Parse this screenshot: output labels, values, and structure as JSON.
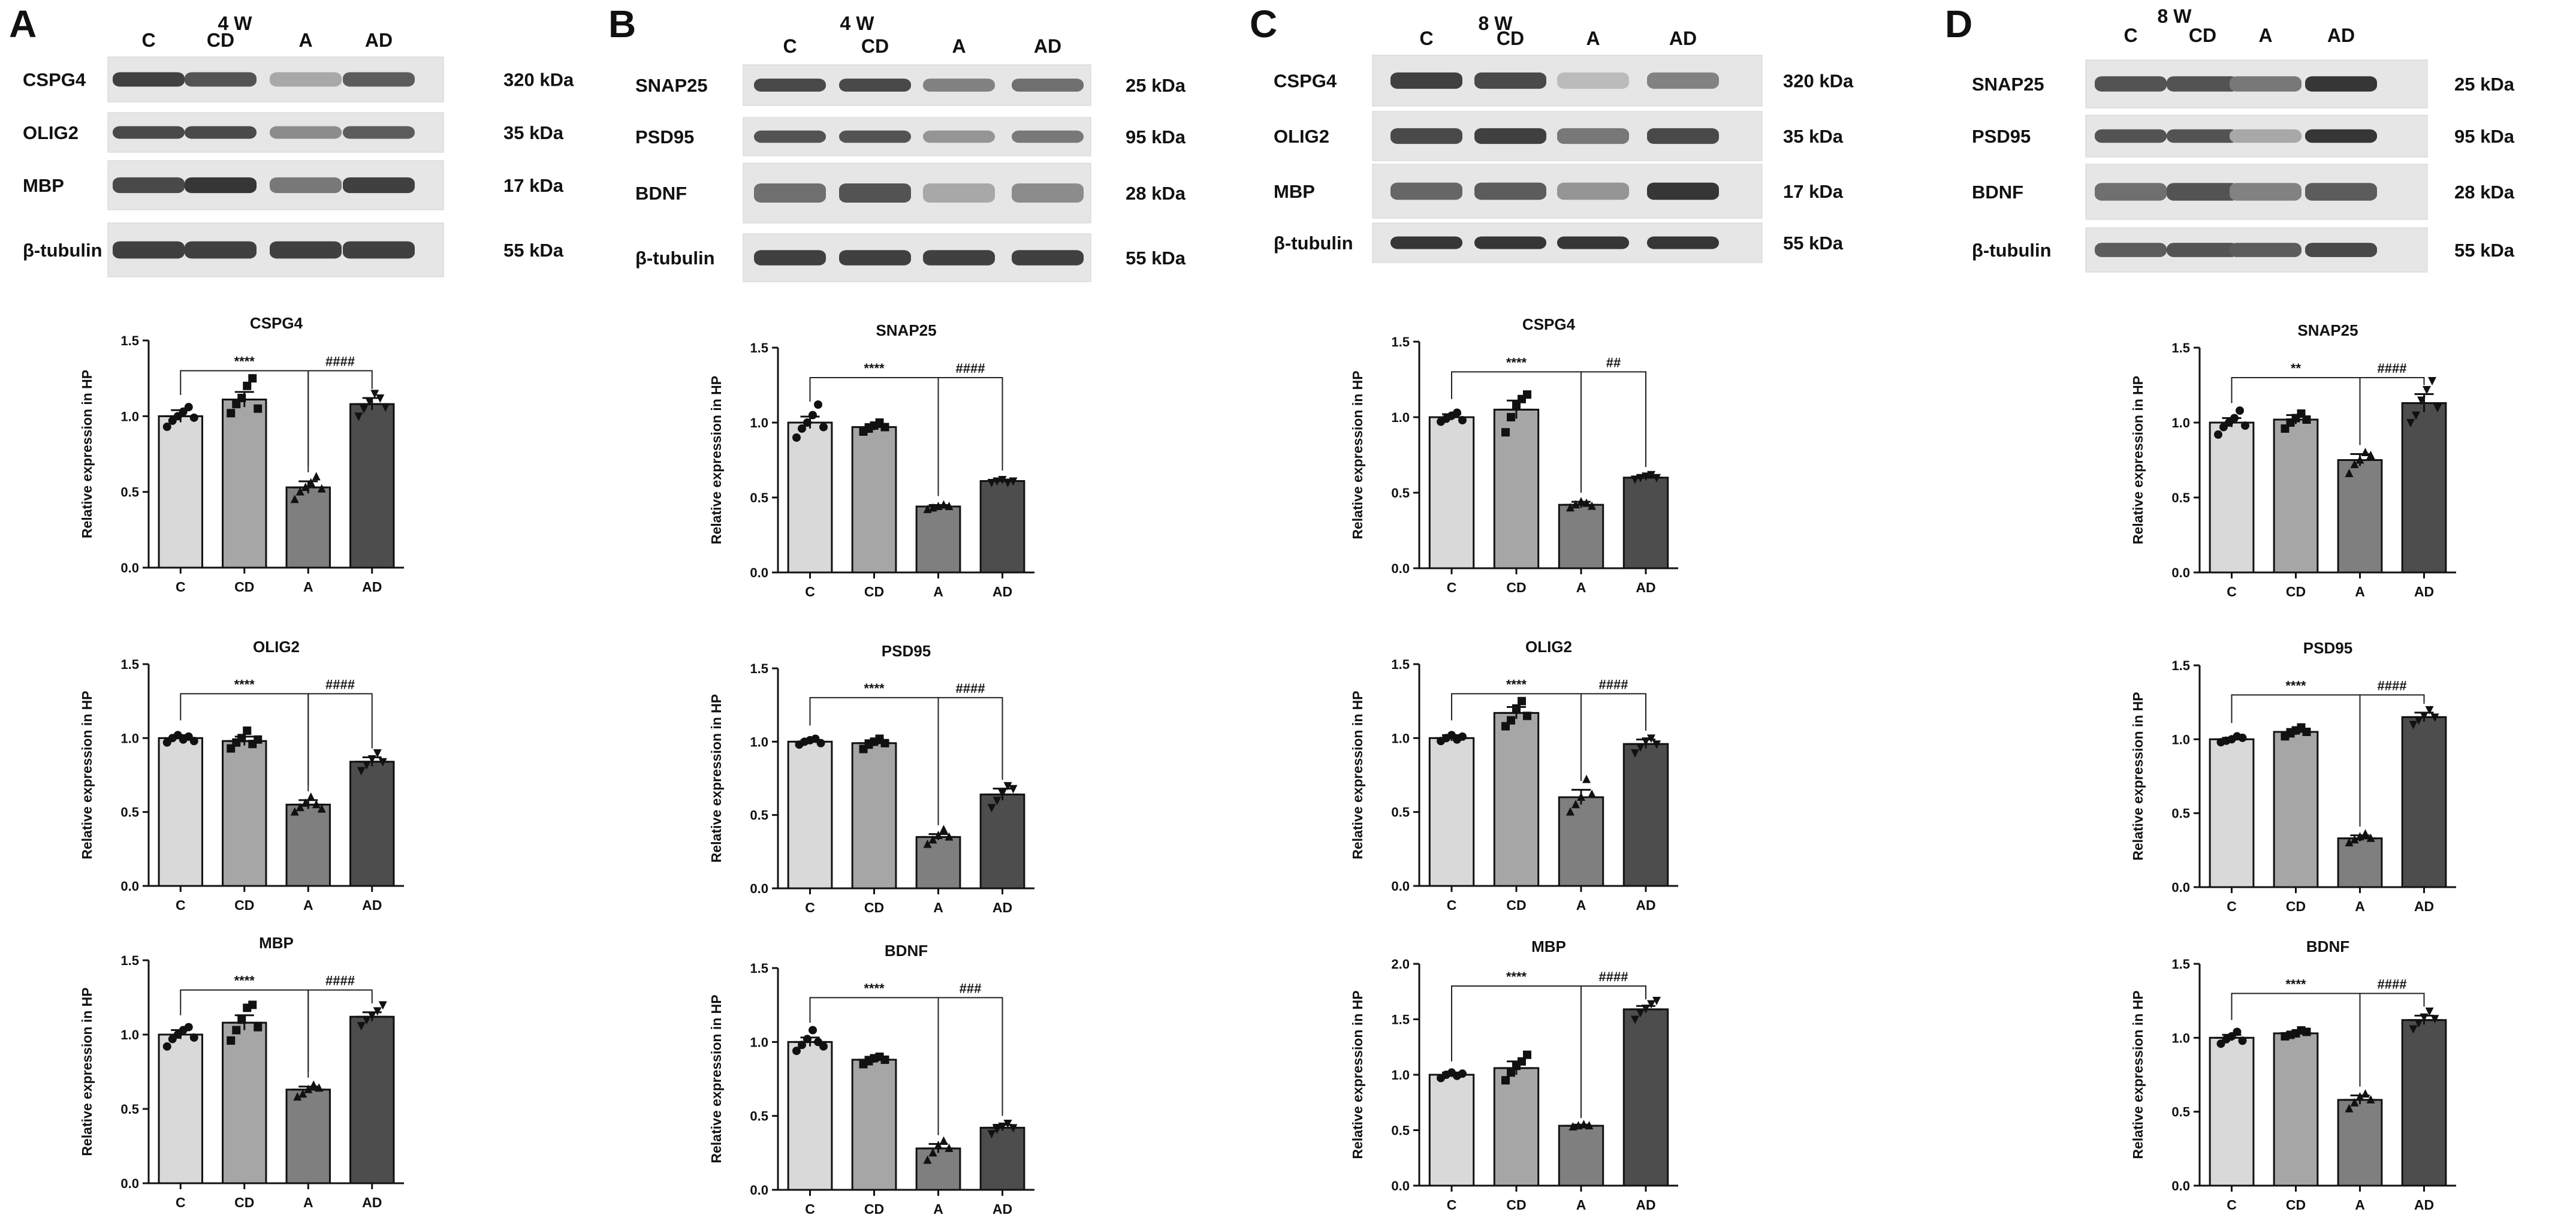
{
  "panels": [
    {
      "letter": "A",
      "timepoint": "4 W",
      "lanes": [
        "C",
        "CD",
        "A",
        "AD"
      ],
      "blots": [
        {
          "protein": "CSPG4",
          "kda": "320 kDa",
          "intensity": [
            0.85,
            0.75,
            0.3,
            0.7
          ]
        },
        {
          "protein": "OLIG2",
          "kda": "35 kDa",
          "intensity": [
            0.8,
            0.8,
            0.45,
            0.7
          ]
        },
        {
          "protein": "MBP",
          "kda": "17 kDa",
          "intensity": [
            0.8,
            0.9,
            0.55,
            0.85
          ]
        },
        {
          "protein": "β-tubulin",
          "kda": "55 kDa",
          "intensity": [
            0.85,
            0.85,
            0.85,
            0.85
          ]
        }
      ]
    },
    {
      "letter": "B",
      "timepoint": "4 W",
      "lanes": [
        "C",
        "CD",
        "A",
        "AD"
      ],
      "blots": [
        {
          "protein": "SNAP25",
          "kda": "25 kDa",
          "intensity": [
            0.8,
            0.8,
            0.5,
            0.6
          ]
        },
        {
          "protein": "PSD95",
          "kda": "95 kDa",
          "intensity": [
            0.75,
            0.75,
            0.4,
            0.55
          ]
        },
        {
          "protein": "BDNF",
          "kda": "28 kDa",
          "intensity": [
            0.6,
            0.75,
            0.3,
            0.45
          ]
        },
        {
          "protein": "β-tubulin",
          "kda": "55 kDa",
          "intensity": [
            0.85,
            0.85,
            0.85,
            0.85
          ]
        }
      ]
    },
    {
      "letter": "C",
      "timepoint": "8 W",
      "lanes": [
        "C",
        "CD",
        "A",
        "AD"
      ],
      "blots": [
        {
          "protein": "CSPG4",
          "kda": "320 kDa",
          "intensity": [
            0.85,
            0.8,
            0.2,
            0.5
          ]
        },
        {
          "protein": "OLIG2",
          "kda": "35 kDa",
          "intensity": [
            0.8,
            0.85,
            0.55,
            0.8
          ]
        },
        {
          "protein": "MBP",
          "kda": "17 kDa",
          "intensity": [
            0.65,
            0.7,
            0.4,
            0.9
          ]
        },
        {
          "protein": "β-tubulin",
          "kda": "55 kDa",
          "intensity": [
            0.9,
            0.9,
            0.9,
            0.9
          ]
        }
      ]
    },
    {
      "letter": "D",
      "timepoint": "8 W",
      "lanes": [
        "C",
        "CD",
        "A",
        "AD"
      ],
      "blots": [
        {
          "protein": "SNAP25",
          "kda": "25 kDa",
          "intensity": [
            0.75,
            0.75,
            0.55,
            0.9
          ]
        },
        {
          "protein": "PSD95",
          "kda": "95 kDa",
          "intensity": [
            0.75,
            0.75,
            0.3,
            0.9
          ]
        },
        {
          "protein": "BDNF",
          "kda": "28 kDa",
          "intensity": [
            0.6,
            0.75,
            0.5,
            0.7
          ]
        },
        {
          "protein": "β-tubulin",
          "kda": "55 kDa",
          "intensity": [
            0.7,
            0.75,
            0.7,
            0.8
          ]
        }
      ]
    }
  ],
  "colors": {
    "C": "#d9d9d9",
    "CD": "#a6a6a6",
    "A": "#7f7f7f",
    "AD": "#4d4d4d"
  },
  "chart_data": [
    {
      "type": "bar",
      "panel": "A",
      "title": "CSPG4",
      "ylabel": "Relative expression in HP",
      "categories": [
        "C",
        "CD",
        "A",
        "AD"
      ],
      "values": [
        1.0,
        1.11,
        0.53,
        1.08
      ],
      "sem": [
        0.04,
        0.05,
        0.04,
        0.04
      ],
      "ylim": [
        0,
        1.5
      ],
      "yticks": [
        "0.0",
        "0.5",
        "1.0",
        "1.5"
      ],
      "markers": [
        "circle",
        "square",
        "triangle",
        "triangle-down"
      ],
      "points": [
        [
          0.93,
          0.97,
          1.0,
          1.03,
          1.06,
          0.99
        ],
        [
          1.02,
          1.08,
          1.12,
          1.2,
          1.25,
          1.05
        ],
        [
          0.45,
          0.5,
          0.53,
          0.56,
          0.6,
          0.52
        ],
        [
          1.0,
          1.05,
          1.1,
          1.15,
          1.12,
          1.06
        ]
      ],
      "annotations": [
        {
          "text": "****",
          "from": "C",
          "to": "A",
          "y": 1.3
        },
        {
          "text": "####",
          "from": "A",
          "to": "AD",
          "y": 1.3
        }
      ]
    },
    {
      "type": "bar",
      "panel": "A",
      "title": "OLIG2",
      "ylabel": "Relative expression in HP",
      "categories": [
        "C",
        "CD",
        "A",
        "AD"
      ],
      "values": [
        1.0,
        0.98,
        0.55,
        0.84
      ],
      "sem": [
        0.02,
        0.03,
        0.03,
        0.03
      ],
      "ylim": [
        0,
        1.5
      ],
      "yticks": [
        "0.0",
        "0.5",
        "1.0",
        "1.5"
      ],
      "markers": [
        "circle",
        "square",
        "triangle",
        "triangle-down"
      ],
      "points": [
        [
          0.97,
          1.0,
          1.02,
          0.99,
          1.01,
          0.98
        ],
        [
          0.93,
          0.97,
          1.0,
          1.05,
          0.96,
          0.99
        ],
        [
          0.5,
          0.53,
          0.56,
          0.6,
          0.55,
          0.52
        ],
        [
          0.78,
          0.82,
          0.86,
          0.9,
          0.84
        ]
      ],
      "annotations": [
        {
          "text": "****",
          "from": "C",
          "to": "A",
          "y": 1.3
        },
        {
          "text": "####",
          "from": "A",
          "to": "AD",
          "y": 1.3
        }
      ]
    },
    {
      "type": "bar",
      "panel": "A",
      "title": "MBP",
      "ylabel": "Relative expression in HP",
      "categories": [
        "C",
        "CD",
        "A",
        "AD"
      ],
      "values": [
        1.0,
        1.08,
        0.63,
        1.12
      ],
      "sem": [
        0.03,
        0.05,
        0.02,
        0.03
      ],
      "ylim": [
        0,
        1.5
      ],
      "yticks": [
        "0.0",
        "0.5",
        "1.0",
        "1.5"
      ],
      "markers": [
        "circle",
        "square",
        "triangle",
        "triangle-down"
      ],
      "points": [
        [
          0.92,
          0.97,
          1.0,
          1.03,
          1.05,
          0.98
        ],
        [
          0.96,
          1.03,
          1.1,
          1.18,
          1.2,
          1.05
        ],
        [
          0.58,
          0.6,
          0.63,
          0.66,
          0.64
        ],
        [
          1.06,
          1.1,
          1.13,
          1.16,
          1.2
        ]
      ],
      "annotations": [
        {
          "text": "****",
          "from": "C",
          "to": "A",
          "y": 1.3
        },
        {
          "text": "####",
          "from": "A",
          "to": "AD",
          "y": 1.3
        }
      ]
    },
    {
      "type": "bar",
      "panel": "B",
      "title": "SNAP25",
      "ylabel": "Relative expression in HP",
      "categories": [
        "C",
        "CD",
        "A",
        "AD"
      ],
      "values": [
        1.0,
        0.97,
        0.44,
        0.61
      ],
      "sem": [
        0.04,
        0.02,
        0.01,
        0.01
      ],
      "ylim": [
        0,
        1.5
      ],
      "yticks": [
        "0.0",
        "0.5",
        "1.0",
        "1.5"
      ],
      "markers": [
        "circle",
        "square",
        "triangle",
        "triangle-down"
      ],
      "points": [
        [
          0.9,
          0.96,
          1.0,
          1.05,
          1.12,
          0.97
        ],
        [
          0.94,
          0.96,
          0.98,
          1.0,
          0.97
        ],
        [
          0.42,
          0.43,
          0.44,
          0.45,
          0.44
        ],
        [
          0.6,
          0.61,
          0.62,
          0.6,
          0.61
        ]
      ],
      "annotations": [
        {
          "text": "****",
          "from": "C",
          "to": "A",
          "y": 1.3
        },
        {
          "text": "####",
          "from": "A",
          "to": "AD",
          "y": 1.3
        }
      ]
    },
    {
      "type": "bar",
      "panel": "B",
      "title": "PSD95",
      "ylabel": "Relative expression in HP",
      "categories": [
        "C",
        "CD",
        "A",
        "AD"
      ],
      "values": [
        1.0,
        0.99,
        0.35,
        0.64
      ],
      "sem": [
        0.01,
        0.02,
        0.02,
        0.04
      ],
      "ylim": [
        0,
        1.5
      ],
      "yticks": [
        "0.0",
        "0.5",
        "1.0",
        "1.5"
      ],
      "markers": [
        "circle",
        "square",
        "triangle",
        "triangle-down"
      ],
      "points": [
        [
          0.98,
          1.0,
          1.01,
          1.02,
          0.99
        ],
        [
          0.95,
          0.98,
          1.0,
          1.02,
          0.99
        ],
        [
          0.3,
          0.33,
          0.36,
          0.4,
          0.35
        ],
        [
          0.55,
          0.6,
          0.65,
          0.7,
          0.68
        ]
      ],
      "annotations": [
        {
          "text": "****",
          "from": "C",
          "to": "A",
          "y": 1.3
        },
        {
          "text": "####",
          "from": "A",
          "to": "AD",
          "y": 1.3
        }
      ]
    },
    {
      "type": "bar",
      "panel": "B",
      "title": "BDNF",
      "ylabel": "Relative expression in HP",
      "categories": [
        "C",
        "CD",
        "A",
        "AD"
      ],
      "values": [
        1.0,
        0.88,
        0.28,
        0.42
      ],
      "sem": [
        0.03,
        0.02,
        0.03,
        0.02
      ],
      "ylim": [
        0,
        1.5
      ],
      "yticks": [
        "0.0",
        "0.5",
        "1.0",
        "1.5"
      ],
      "markers": [
        "circle",
        "square",
        "triangle",
        "triangle-down"
      ],
      "points": [
        [
          0.94,
          0.98,
          1.02,
          1.08,
          1.0,
          0.97
        ],
        [
          0.85,
          0.87,
          0.89,
          0.9,
          0.88
        ],
        [
          0.2,
          0.25,
          0.3,
          0.33,
          0.28
        ],
        [
          0.38,
          0.41,
          0.43,
          0.45,
          0.42
        ]
      ],
      "annotations": [
        {
          "text": "****",
          "from": "C",
          "to": "A",
          "y": 1.3
        },
        {
          "text": "###",
          "from": "A",
          "to": "AD",
          "y": 1.3
        }
      ]
    },
    {
      "type": "bar",
      "panel": "C",
      "title": "CSPG4",
      "ylabel": "Relative expression in HP",
      "categories": [
        "C",
        "CD",
        "A",
        "AD"
      ],
      "values": [
        1.0,
        1.05,
        0.42,
        0.6
      ],
      "sem": [
        0.02,
        0.06,
        0.02,
        0.01
      ],
      "ylim": [
        0,
        1.5
      ],
      "yticks": [
        "0.0",
        "0.5",
        "1.0",
        "1.5"
      ],
      "markers": [
        "circle",
        "square",
        "triangle",
        "triangle-down"
      ],
      "points": [
        [
          0.97,
          0.99,
          1.01,
          1.03,
          0.98
        ],
        [
          0.9,
          1.0,
          1.08,
          1.12,
          1.15
        ],
        [
          0.4,
          0.42,
          0.44,
          0.43,
          0.41
        ],
        [
          0.59,
          0.6,
          0.61,
          0.62,
          0.6
        ]
      ],
      "annotations": [
        {
          "text": "****",
          "from": "C",
          "to": "A",
          "y": 1.3
        },
        {
          "text": "##",
          "from": "A",
          "to": "AD",
          "y": 1.3
        }
      ]
    },
    {
      "type": "bar",
      "panel": "C",
      "title": "OLIG2",
      "ylabel": "Relative expression in HP",
      "categories": [
        "C",
        "CD",
        "A",
        "AD"
      ],
      "values": [
        1.0,
        1.17,
        0.6,
        0.96
      ],
      "sem": [
        0.02,
        0.04,
        0.05,
        0.03
      ],
      "ylim": [
        0,
        1.5
      ],
      "yticks": [
        "0.0",
        "0.5",
        "1.0",
        "1.5"
      ],
      "markers": [
        "circle",
        "square",
        "triangle",
        "triangle-down"
      ],
      "points": [
        [
          0.98,
          1.0,
          1.02,
          0.99,
          1.01
        ],
        [
          1.08,
          1.12,
          1.2,
          1.25,
          1.15
        ],
        [
          0.5,
          0.55,
          0.6,
          0.72,
          0.62
        ],
        [
          0.9,
          0.94,
          0.98,
          1.0,
          0.96
        ]
      ],
      "annotations": [
        {
          "text": "****",
          "from": "C",
          "to": "A",
          "y": 1.3
        },
        {
          "text": "####",
          "from": "A",
          "to": "AD",
          "y": 1.3
        }
      ]
    },
    {
      "type": "bar",
      "panel": "C",
      "title": "MBP",
      "ylabel": "Relative expression in HP",
      "categories": [
        "C",
        "CD",
        "A",
        "AD"
      ],
      "values": [
        1.0,
        1.06,
        0.54,
        1.59
      ],
      "sem": [
        0.02,
        0.06,
        0.01,
        0.03
      ],
      "ylim": [
        0,
        2.0
      ],
      "yticks": [
        "0.0",
        "0.5",
        "1.0",
        "1.5",
        "2.0"
      ],
      "markers": [
        "circle",
        "square",
        "triangle",
        "triangle-down"
      ],
      "points": [
        [
          0.97,
          1.0,
          1.02,
          0.99,
          1.01
        ],
        [
          0.95,
          1.02,
          1.08,
          1.12,
          1.18
        ],
        [
          0.53,
          0.54,
          0.55,
          0.54
        ],
        [
          1.5,
          1.56,
          1.6,
          1.64,
          1.67
        ]
      ],
      "annotations": [
        {
          "text": "****",
          "from": "C",
          "to": "A",
          "y": 1.8
        },
        {
          "text": "####",
          "from": "A",
          "to": "AD",
          "y": 1.8
        }
      ]
    },
    {
      "type": "bar",
      "panel": "D",
      "title": "SNAP25",
      "ylabel": "Relative expression in HP",
      "categories": [
        "C",
        "CD",
        "A",
        "AD"
      ],
      "values": [
        1.0,
        1.02,
        0.75,
        1.13
      ],
      "sem": [
        0.03,
        0.03,
        0.04,
        0.06
      ],
      "ylim": [
        0,
        1.5
      ],
      "yticks": [
        "0.0",
        "0.5",
        "1.0",
        "1.5"
      ],
      "markers": [
        "circle",
        "square",
        "triangle",
        "triangle-down"
      ],
      "points": [
        [
          0.92,
          0.97,
          1.0,
          1.03,
          1.08,
          0.98
        ],
        [
          0.96,
          1.0,
          1.03,
          1.06,
          1.02
        ],
        [
          0.66,
          0.72,
          0.75,
          0.8,
          0.78
        ],
        [
          1.0,
          1.05,
          1.15,
          1.22,
          1.28,
          1.1
        ]
      ],
      "annotations": [
        {
          "text": "**",
          "from": "C",
          "to": "A",
          "y": 1.3
        },
        {
          "text": "####",
          "from": "A",
          "to": "AD",
          "y": 1.3
        }
      ]
    },
    {
      "type": "bar",
      "panel": "D",
      "title": "PSD95",
      "ylabel": "Relative expression in HP",
      "categories": [
        "C",
        "CD",
        "A",
        "AD"
      ],
      "values": [
        1.0,
        1.05,
        0.33,
        1.15
      ],
      "sem": [
        0.01,
        0.02,
        0.02,
        0.03
      ],
      "ylim": [
        0,
        1.5
      ],
      "yticks": [
        "0.0",
        "0.5",
        "1.0",
        "1.5"
      ],
      "markers": [
        "circle",
        "square",
        "triangle",
        "triangle-down"
      ],
      "points": [
        [
          0.98,
          0.99,
          1.0,
          1.02,
          1.01
        ],
        [
          1.02,
          1.04,
          1.06,
          1.08,
          1.05
        ],
        [
          0.3,
          0.32,
          0.34,
          0.36,
          0.33
        ],
        [
          1.1,
          1.13,
          1.16,
          1.2,
          1.15
        ]
      ],
      "annotations": [
        {
          "text": "****",
          "from": "C",
          "to": "A",
          "y": 1.3
        },
        {
          "text": "####",
          "from": "A",
          "to": "AD",
          "y": 1.3
        }
      ]
    },
    {
      "type": "bar",
      "panel": "D",
      "title": "BDNF",
      "ylabel": "Relative expression in HP",
      "categories": [
        "C",
        "CD",
        "A",
        "AD"
      ],
      "values": [
        1.0,
        1.03,
        0.58,
        1.12
      ],
      "sem": [
        0.02,
        0.01,
        0.03,
        0.03
      ],
      "ylim": [
        0,
        1.5
      ],
      "yticks": [
        "0.0",
        "0.5",
        "1.0",
        "1.5"
      ],
      "markers": [
        "circle",
        "square",
        "triangle",
        "triangle-down"
      ],
      "points": [
        [
          0.96,
          0.99,
          1.01,
          1.04,
          0.98
        ],
        [
          1.01,
          1.02,
          1.03,
          1.05,
          1.04
        ],
        [
          0.52,
          0.56,
          0.6,
          0.62,
          0.58
        ],
        [
          1.06,
          1.1,
          1.14,
          1.18,
          1.13
        ]
      ],
      "annotations": [
        {
          "text": "****",
          "from": "C",
          "to": "A",
          "y": 1.3
        },
        {
          "text": "####",
          "from": "A",
          "to": "AD",
          "y": 1.3
        }
      ]
    }
  ]
}
